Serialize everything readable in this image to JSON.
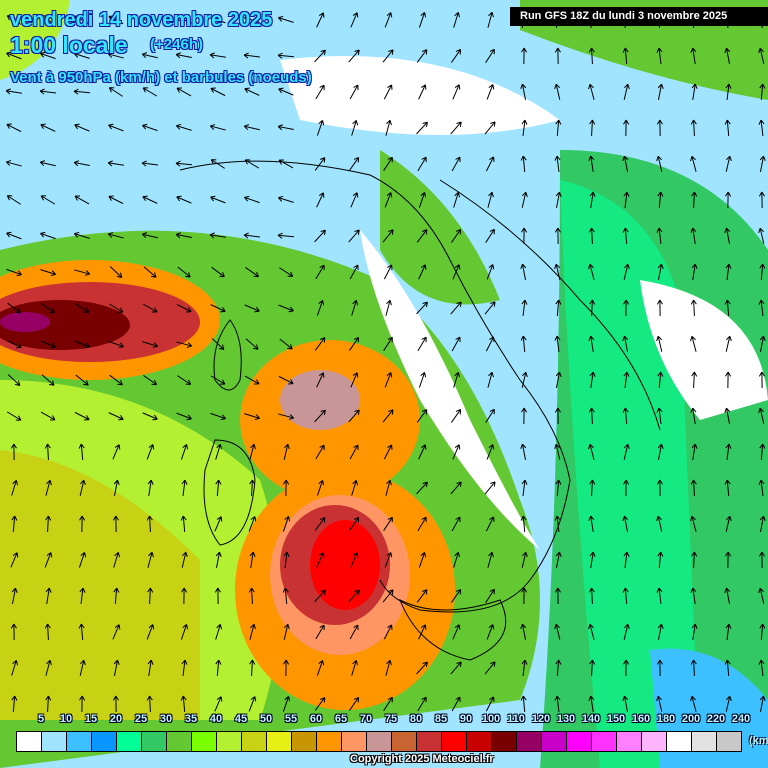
{
  "header": {
    "date": "vendredi 14 novembre 2025",
    "time": "1:00 locale",
    "offset": "(+246h)",
    "field": "Vent à 950hPa (km/h) et barbules (noeuds)",
    "run": "Run GFS 18Z du lundi 3 novembre 2025"
  },
  "legend": {
    "ticks": [
      "5",
      "10",
      "15",
      "20",
      "25",
      "30",
      "35",
      "40",
      "45",
      "50",
      "55",
      "60",
      "65",
      "70",
      "75",
      "80",
      "85",
      "90",
      "100",
      "110",
      "120",
      "130",
      "140",
      "150",
      "160",
      "180",
      "200",
      "220",
      "240"
    ],
    "colors": [
      "#ffffff",
      "#a0e4ff",
      "#3cc0ff",
      "#0a96ff",
      "#00ff96",
      "#32c864",
      "#64c832",
      "#7aff00",
      "#b4f032",
      "#c8d214",
      "#e6f014",
      "#c89600",
      "#ff9600",
      "#ff9664",
      "#c89696",
      "#c86432",
      "#c83232",
      "#ff0000",
      "#c80000",
      "#780000",
      "#960064",
      "#c800c8",
      "#ff00ff",
      "#ff32ff",
      "#ff80ff",
      "#ffb4ff",
      "#ffffff",
      "#e1e1e1",
      "#c8c8c8"
    ],
    "unit": "(km/h)"
  },
  "footer": {
    "copyright": "Copyright 2025 Meteociel.fr"
  }
}
